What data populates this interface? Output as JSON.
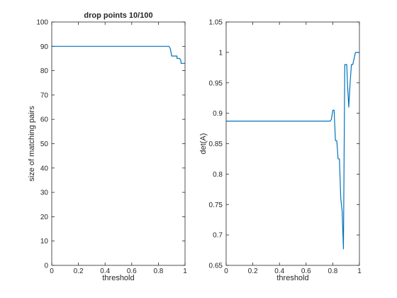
{
  "chart_data": [
    {
      "type": "line",
      "title": "drop points 10/100",
      "xlabel": "threshold",
      "ylabel": "size of matching pairs",
      "xlim": [
        0,
        1
      ],
      "ylim": [
        0,
        100
      ],
      "xticks": [
        0,
        0.2,
        0.4,
        0.6,
        0.8,
        1
      ],
      "xtick_labels": [
        "0",
        "0.2",
        "0.4",
        "0.6",
        "0.8",
        "1"
      ],
      "yticks": [
        0,
        10,
        20,
        30,
        40,
        50,
        60,
        70,
        80,
        90,
        100
      ],
      "ytick_labels": [
        "0",
        "10",
        "20",
        "30",
        "40",
        "50",
        "60",
        "70",
        "80",
        "90",
        "100"
      ],
      "grid": false,
      "line_color": "#0072bd",
      "series": [
        {
          "x": [
            0,
            0.1,
            0.2,
            0.3,
            0.4,
            0.5,
            0.6,
            0.7,
            0.8,
            0.86,
            0.88,
            0.89,
            0.9,
            0.9,
            0.94,
            0.94,
            0.96,
            0.97,
            0.97,
            0.98,
            1.0
          ],
          "y": [
            90,
            90,
            90,
            90,
            90,
            90,
            90,
            90,
            90,
            90,
            90,
            89,
            86,
            86,
            86,
            85,
            85,
            84,
            83,
            83,
            83
          ]
        }
      ]
    },
    {
      "type": "line",
      "title": "",
      "xlabel": "threshold",
      "ylabel": "det(A)",
      "xlim": [
        0,
        1
      ],
      "ylim": [
        0.65,
        1.05
      ],
      "xticks": [
        0,
        0.2,
        0.4,
        0.6,
        0.8,
        1
      ],
      "xtick_labels": [
        "0",
        "0.2",
        "0.4",
        "0.6",
        "0.8",
        "1"
      ],
      "yticks": [
        0.65,
        0.7,
        0.75,
        0.8,
        0.85,
        0.9,
        0.95,
        1,
        1.05
      ],
      "ytick_labels": [
        "0.65",
        "0.7",
        "0.75",
        "0.8",
        "0.85",
        "0.9",
        "0.95",
        "1",
        "1.05"
      ],
      "grid": false,
      "line_color": "#0072bd",
      "series": [
        {
          "x": [
            0,
            0.2,
            0.4,
            0.6,
            0.78,
            0.79,
            0.8,
            0.81,
            0.82,
            0.83,
            0.84,
            0.85,
            0.86,
            0.87,
            0.88,
            0.89,
            0.9,
            0.905,
            0.91,
            0.92,
            0.93,
            0.94,
            0.95,
            0.96,
            0.97,
            0.98,
            1.0
          ],
          "y": [
            0.887,
            0.887,
            0.887,
            0.887,
            0.887,
            0.89,
            0.905,
            0.905,
            0.855,
            0.855,
            0.825,
            0.825,
            0.76,
            0.74,
            0.677,
            0.98,
            0.98,
            0.98,
            0.95,
            0.91,
            0.95,
            0.98,
            0.98,
            0.99,
            1.0,
            1.0,
            1.0
          ]
        }
      ]
    }
  ]
}
